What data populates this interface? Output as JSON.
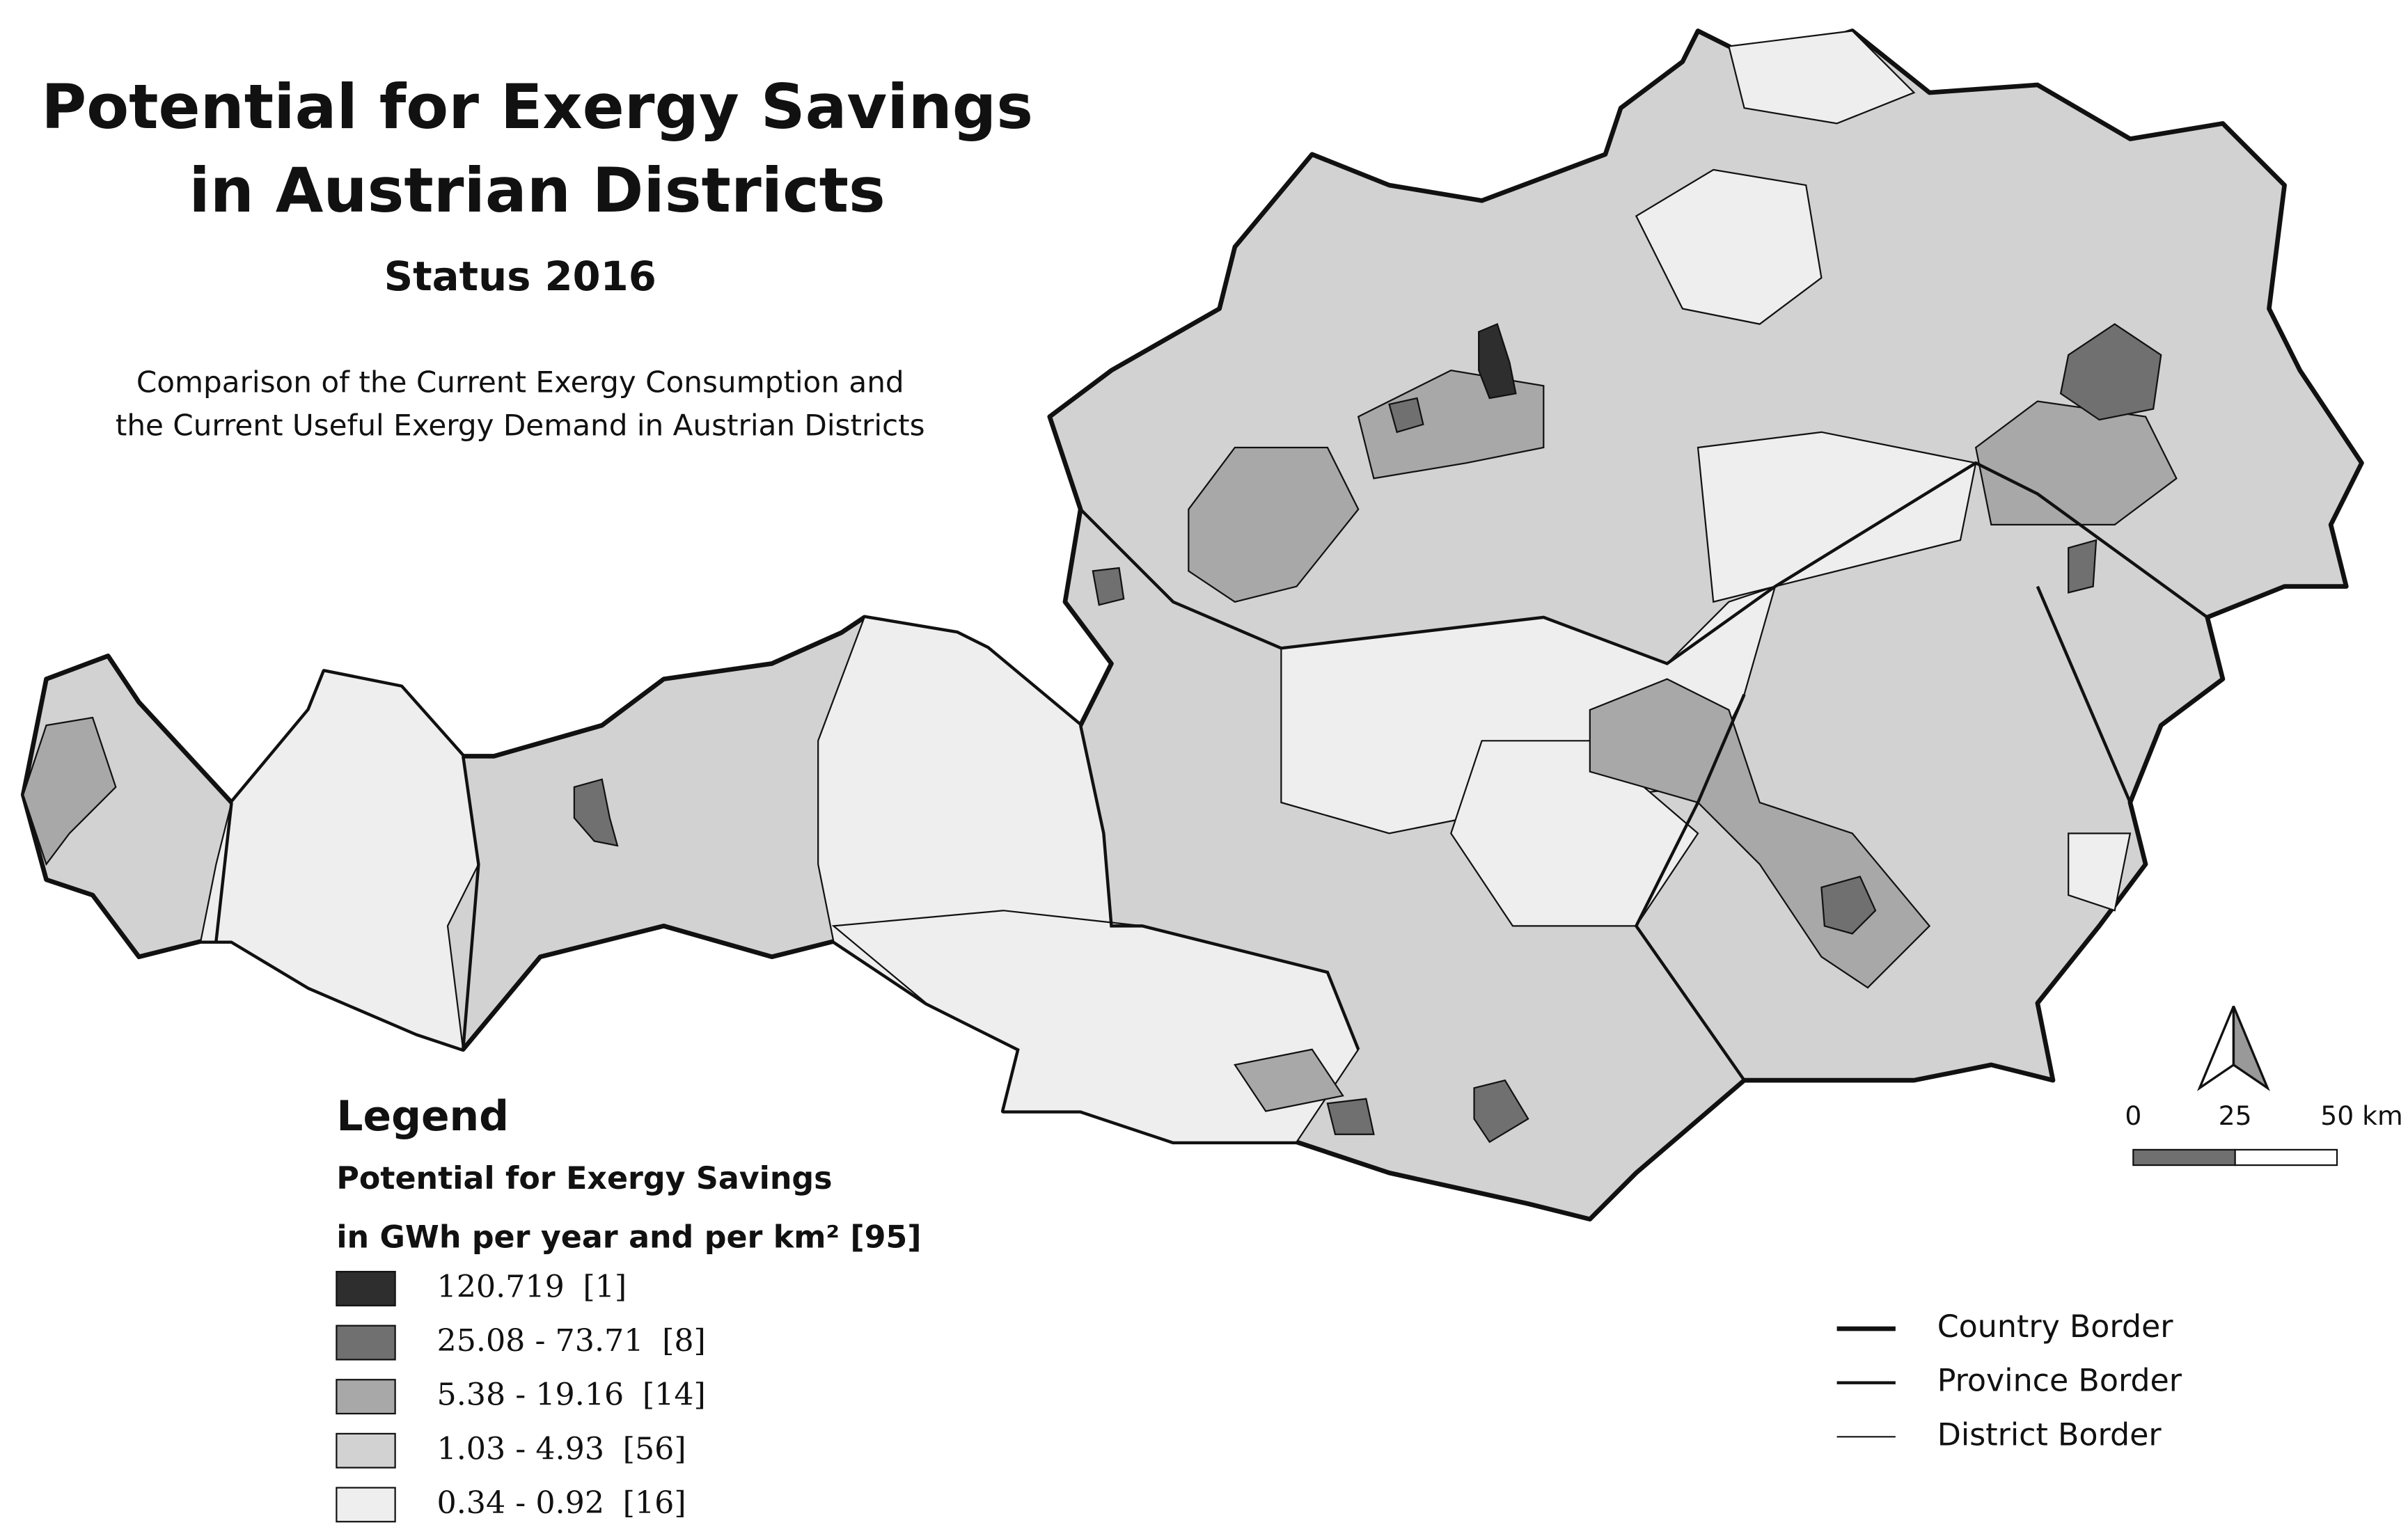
{
  "header": {
    "title_line1": "Potential for Exergy Savings",
    "title_line2": "in Austrian Districts",
    "status": "Status 2016",
    "description_line1": "Comparison of the Current Exergy Consumption and",
    "description_line2": "the Current Useful Exergy Demand in Austrian Districts"
  },
  "legend": {
    "title": "Legend",
    "subtitle_line1": "Potential for Exergy Savings",
    "subtitle_line2": "in GWh per year and per km² [95]",
    "classes": [
      {
        "range": "120.719",
        "count": "[1]",
        "color": "#2e2e2e"
      },
      {
        "range": "25.08 - 73.71",
        "count": "[8]",
        "color": "#707070"
      },
      {
        "range": "5.38 - 19.16",
        "count": "[14]",
        "color": "#a8a8a8"
      },
      {
        "range": "1.03 - 4.93",
        "count": "[56]",
        "color": "#d2d2d2"
      },
      {
        "range": "0.34 - 0.92",
        "count": "[16]",
        "color": "#eeeeee"
      }
    ]
  },
  "borders": [
    {
      "label": "Country Border",
      "width": 3
    },
    {
      "label": "Province Border",
      "width": 2
    },
    {
      "label": "District Border",
      "width": 1
    }
  ],
  "scale_bar": {
    "labels": [
      "0",
      "25",
      "50 km"
    ]
  }
}
